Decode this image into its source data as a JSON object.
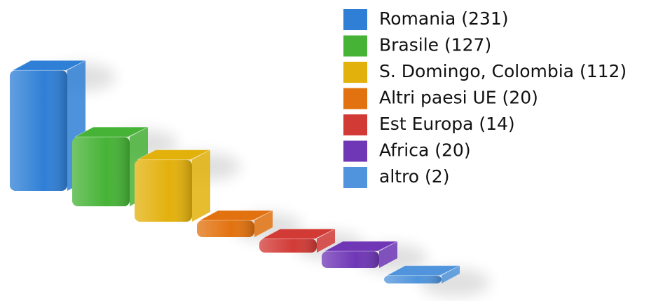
{
  "chart_data": {
    "type": "bar3d",
    "categories": [
      "Romania (231)",
      "Brasile (127)",
      "S. Domingo, Colombia (112)",
      "Altri paesi UE (20)",
      "Est Europa (14)",
      "Africa (20)",
      "altro (2)"
    ],
    "values": [
      231,
      127,
      112,
      20,
      14,
      20,
      2
    ],
    "colors": [
      "#2f7fd6",
      "#46b336",
      "#e3b10c",
      "#e2720f",
      "#d23a36",
      "#6f36b6",
      "#4f94dc"
    ],
    "legend": "top-right"
  }
}
